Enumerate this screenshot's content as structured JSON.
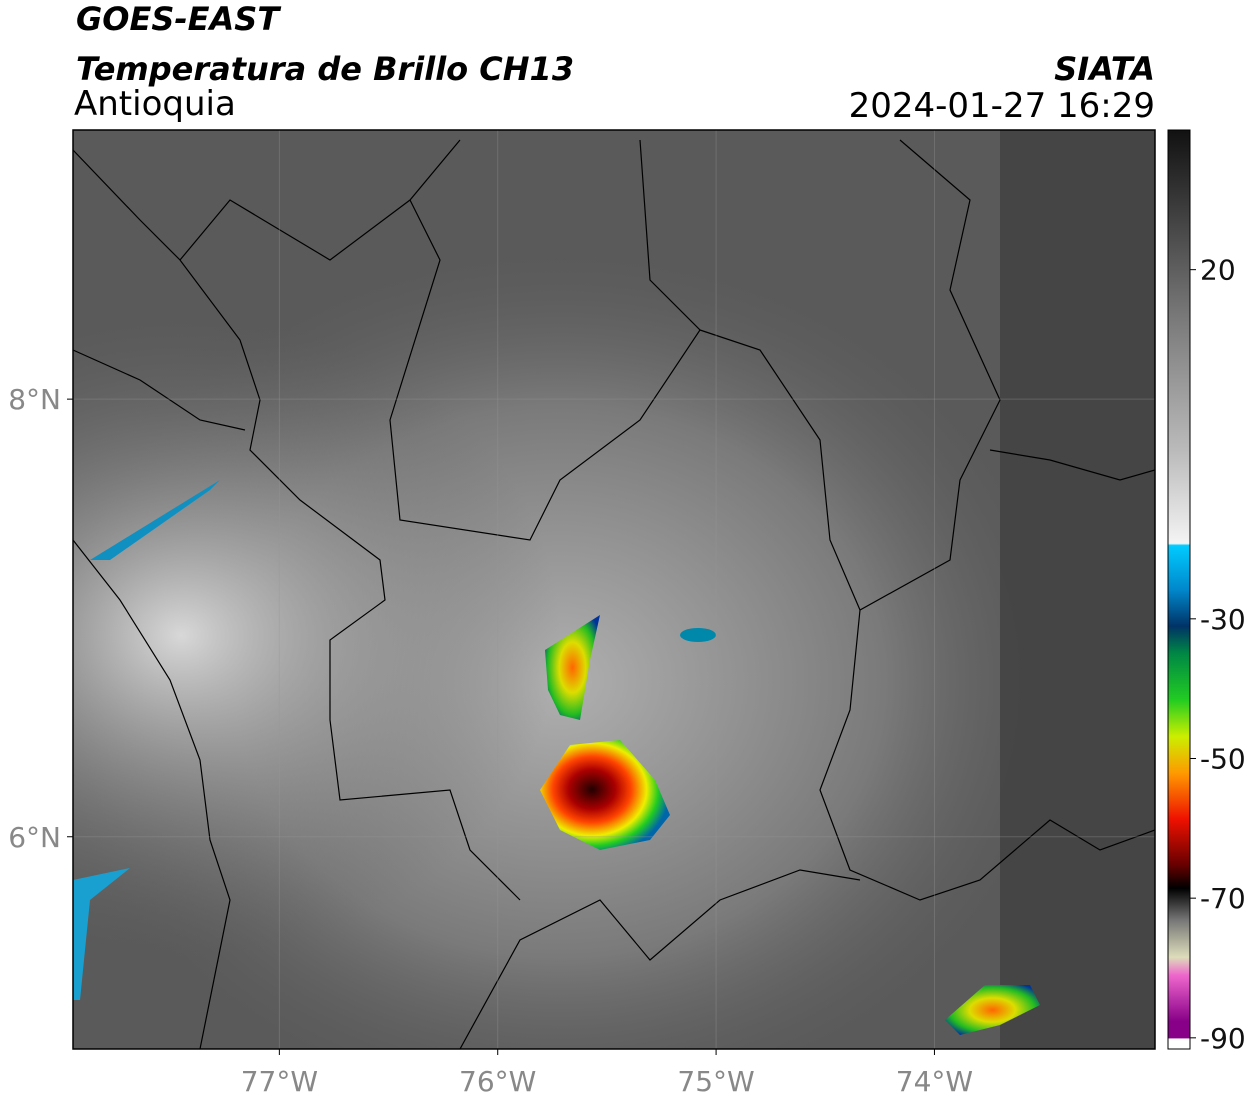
{
  "header": {
    "title": "GOES-EAST",
    "subtitle": "Temperatura de Brillo CH13",
    "region": "Antioquia",
    "source": "SIATA",
    "datetime": "2024-01-27 16:29"
  },
  "map": {
    "xlim": [
      -77.945,
      -72.99
    ],
    "ylim": [
      5.03,
      9.23
    ],
    "xticks": [
      {
        "value": -77,
        "label": "77°W"
      },
      {
        "value": -76,
        "label": "76°W"
      },
      {
        "value": -75,
        "label": "75°W"
      },
      {
        "value": -74,
        "label": "74°W"
      }
    ],
    "yticks": [
      {
        "value": 8,
        "label": "8°N"
      },
      {
        "value": 6,
        "label": "6°N"
      }
    ]
  },
  "colorbar": {
    "lim": [
      -91.6,
      40
    ],
    "ticks": [
      20,
      -30,
      -50,
      -70,
      -90
    ]
  }
}
